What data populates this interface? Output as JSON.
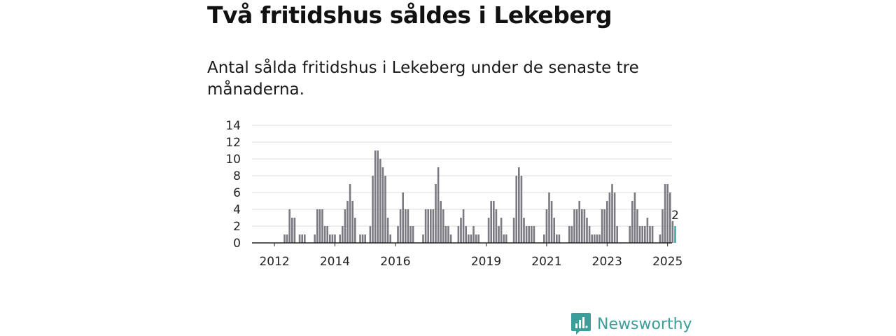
{
  "header": {
    "title": "Två fritidshus såldes i Lekeberg",
    "subtitle": "Antal sålda fritidshus i Lekeberg under de senaste tre månaderna."
  },
  "brand": {
    "name": "Newsworthy",
    "icon": "newsworthy-logo-icon",
    "color": "#3a9e9b"
  },
  "chart_data": {
    "type": "bar",
    "title": "Två fritidshus såldes i Lekeberg",
    "subtitle": "Antal sålda fritidshus i Lekeberg under de senaste tre månaderna.",
    "xlabel": "",
    "ylabel": "",
    "ylim": [
      0,
      14
    ],
    "yticks": [
      0,
      2,
      4,
      6,
      8,
      10,
      12,
      14
    ],
    "xticks": [
      {
        "label": "2012",
        "index": 8
      },
      {
        "label": "2014",
        "index": 32
      },
      {
        "label": "2016",
        "index": 56
      },
      {
        "label": "2019",
        "index": 92
      },
      {
        "label": "2021",
        "index": 116
      },
      {
        "label": "2023",
        "index": 140
      },
      {
        "label": "2025",
        "index": 164
      }
    ],
    "grid": true,
    "bar_color": "#7a7a80",
    "highlight_color": "#3aaba7",
    "highlight_label": "2",
    "values": [
      0,
      0,
      0,
      0,
      0,
      0,
      0,
      0,
      0,
      0,
      0,
      0,
      1,
      1,
      4,
      3,
      3,
      0,
      1,
      1,
      1,
      0,
      0,
      0,
      1,
      4,
      4,
      4,
      2,
      2,
      1,
      1,
      1,
      0,
      1,
      2,
      4,
      5,
      7,
      5,
      3,
      0,
      1,
      1,
      1,
      0,
      2,
      8,
      11,
      11,
      10,
      9,
      8,
      3,
      1,
      0,
      0,
      2,
      4,
      6,
      4,
      4,
      2,
      2,
      0,
      0,
      0,
      1,
      4,
      4,
      4,
      4,
      7,
      9,
      5,
      4,
      2,
      2,
      1,
      0,
      0,
      2,
      3,
      4,
      2,
      1,
      1,
      2,
      1,
      1,
      0,
      0,
      0,
      3,
      5,
      5,
      4,
      2,
      3,
      1,
      1,
      0,
      0,
      3,
      8,
      9,
      8,
      3,
      2,
      2,
      2,
      2,
      0,
      0,
      0,
      1,
      4,
      6,
      5,
      3,
      1,
      1,
      0,
      0,
      0,
      2,
      2,
      4,
      4,
      5,
      4,
      4,
      3,
      2,
      1,
      1,
      1,
      1,
      4,
      4,
      5,
      6,
      7,
      6,
      2,
      0,
      0,
      0,
      0,
      2,
      5,
      6,
      4,
      2,
      2,
      2,
      3,
      2,
      2,
      0,
      0,
      1,
      4,
      7,
      7,
      6,
      2.6,
      2
    ]
  }
}
